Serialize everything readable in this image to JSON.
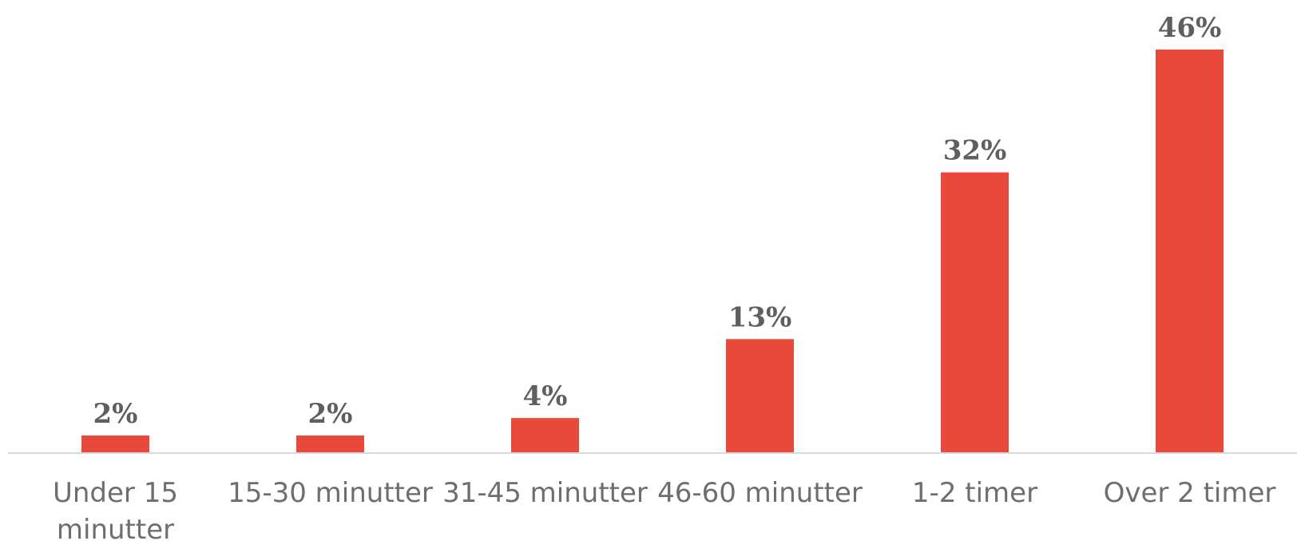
{
  "chart_data": {
    "type": "bar",
    "categories": [
      [
        "Under 15",
        "minutter"
      ],
      [
        "15-30 minutter"
      ],
      [
        "31-45 minutter"
      ],
      [
        "46-60 minutter"
      ],
      [
        "1-2 timer"
      ],
      [
        "Over 2 timer"
      ]
    ],
    "values": [
      2,
      2,
      4,
      13,
      32,
      46
    ],
    "data_labels": [
      "2%",
      "2%",
      "4%",
      "13%",
      "32%",
      "46%"
    ],
    "title": "",
    "xlabel": "",
    "ylabel": "",
    "ylim": [
      0,
      46
    ],
    "grid": false,
    "legend": "none",
    "colors": {
      "bar": "#e8493a",
      "axis": "#d9d9d9"
    }
  }
}
